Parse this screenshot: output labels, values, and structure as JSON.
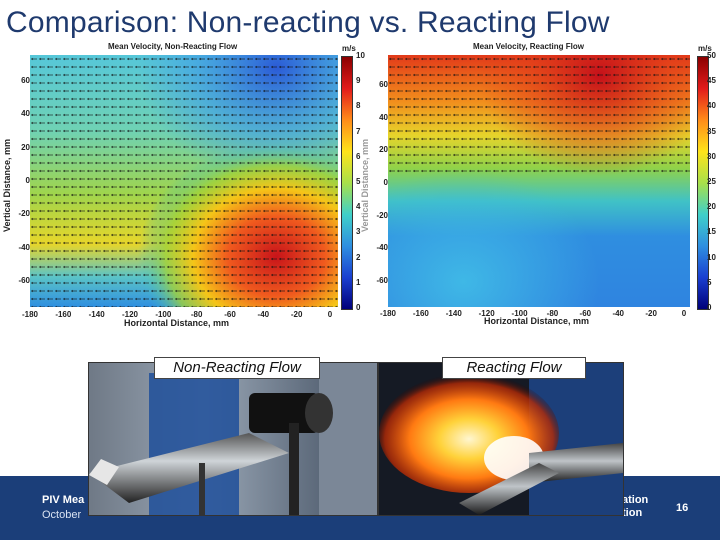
{
  "slide": {
    "title": "Comparison:  Non-reacting vs. Reacting Flow",
    "page_number": "16"
  },
  "left_plot": {
    "title": "Mean Velocity, Non-Reacting Flow",
    "colorbar_unit": "m/s",
    "colorbar_ticks": [
      "10",
      "9",
      "8",
      "7",
      "6",
      "5",
      "4",
      "3",
      "2",
      "1",
      "0"
    ],
    "y_ticks": [
      "60",
      "40",
      "20",
      "0",
      "-20",
      "-40",
      "-60"
    ],
    "x_ticks": [
      "-180",
      "-160",
      "-140",
      "-120",
      "-100",
      "-80",
      "-60",
      "-40",
      "-20",
      "0"
    ],
    "xlabel": "Horizontal Distance, mm",
    "ylabel": "Vertical Distance, mm"
  },
  "right_plot": {
    "title": "Mean Velocity, Reacting Flow",
    "colorbar_unit": "m/s",
    "colorbar_ticks": [
      "50",
      "45",
      "40",
      "35",
      "30",
      "25",
      "20",
      "15",
      "10",
      "5",
      "0"
    ],
    "y_ticks": [
      "60",
      "40",
      "20",
      "0",
      "-20",
      "-40",
      "-60"
    ],
    "x_ticks": [
      "-180",
      "-160",
      "-140",
      "-120",
      "-100",
      "-80",
      "-60",
      "-40",
      "-20",
      "0"
    ],
    "xlabel": "Horizontal Distance, mm",
    "ylabel": "Vertical Distance, mm"
  },
  "photos": {
    "left_label": "Non-Reacting Flow",
    "right_label": "Reacting Flow"
  },
  "footer": {
    "left_line1": "PIV Mea",
    "left_line2": "October",
    "right_line1": "ation",
    "right_line2": "tion"
  },
  "colors": {
    "footer_bg": "#1b3e79",
    "title": "#1f3a6e"
  }
}
